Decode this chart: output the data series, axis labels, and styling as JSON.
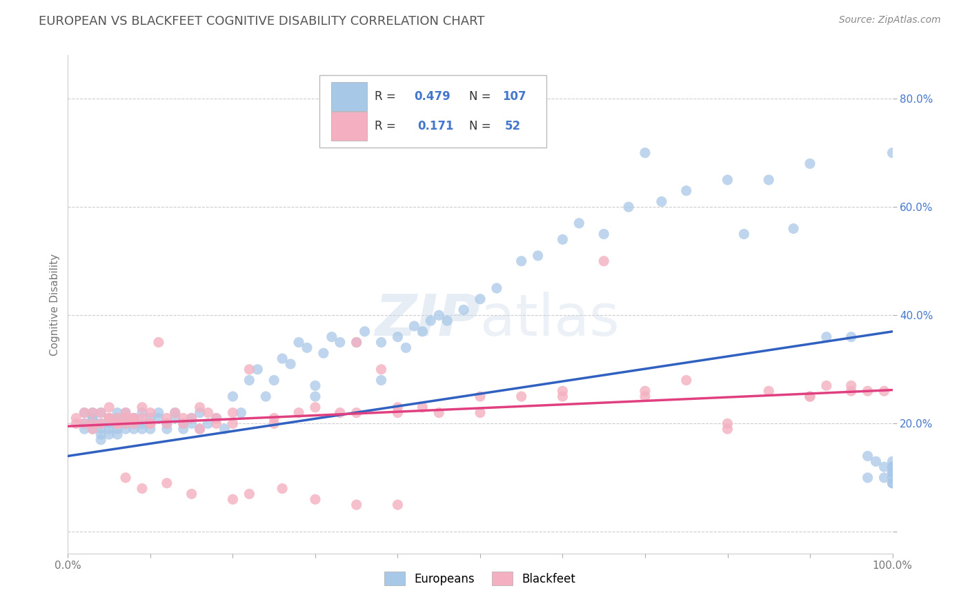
{
  "title": "EUROPEAN VS BLACKFEET COGNITIVE DISABILITY CORRELATION CHART",
  "source": "Source: ZipAtlas.com",
  "ylabel": "Cognitive Disability",
  "xlim": [
    0.0,
    1.0
  ],
  "ylim": [
    -0.04,
    0.88
  ],
  "xticks": [
    0.0,
    0.1,
    0.2,
    0.3,
    0.4,
    0.5,
    0.6,
    0.7,
    0.8,
    0.9,
    1.0
  ],
  "yticks": [
    0.0,
    0.2,
    0.4,
    0.6,
    0.8
  ],
  "yticklabels": [
    "",
    "20.0%",
    "40.0%",
    "60.0%",
    "80.0%"
  ],
  "euro_R": 0.479,
  "euro_N": 107,
  "black_R": 0.171,
  "black_N": 52,
  "euro_color": "#a8c8e8",
  "black_color": "#f4b0c0",
  "euro_line_color": "#3060c0",
  "black_line_color": "#e04080",
  "background_color": "#ffffff",
  "grid_color": "#cccccc",
  "title_color": "#555555",
  "legend_box_euro": "#a8c8e8",
  "legend_box_black": "#f4b0c0",
  "watermark": "ZIPatlas",
  "num_color": "#4477cc",
  "euro_scatter_x": [
    0.02,
    0.02,
    0.02,
    0.03,
    0.03,
    0.03,
    0.03,
    0.04,
    0.04,
    0.04,
    0.04,
    0.04,
    0.05,
    0.05,
    0.05,
    0.05,
    0.06,
    0.06,
    0.06,
    0.06,
    0.07,
    0.07,
    0.07,
    0.07,
    0.08,
    0.08,
    0.08,
    0.09,
    0.09,
    0.09,
    0.1,
    0.1,
    0.1,
    0.11,
    0.11,
    0.12,
    0.12,
    0.13,
    0.13,
    0.14,
    0.14,
    0.15,
    0.15,
    0.16,
    0.16,
    0.17,
    0.18,
    0.19,
    0.2,
    0.21,
    0.22,
    0.23,
    0.24,
    0.25,
    0.26,
    0.27,
    0.28,
    0.29,
    0.3,
    0.3,
    0.31,
    0.32,
    0.33,
    0.35,
    0.36,
    0.38,
    0.38,
    0.4,
    0.41,
    0.42,
    0.43,
    0.44,
    0.45,
    0.46,
    0.48,
    0.5,
    0.52,
    0.55,
    0.57,
    0.6,
    0.62,
    0.65,
    0.68,
    0.7,
    0.72,
    0.75,
    0.8,
    0.82,
    0.85,
    0.88,
    0.9,
    0.92,
    0.95,
    0.97,
    0.97,
    0.98,
    0.99,
    0.99,
    1.0,
    1.0,
    1.0,
    1.0,
    1.0,
    1.0,
    1.0,
    1.0,
    1.0
  ],
  "euro_scatter_y": [
    0.2,
    0.22,
    0.19,
    0.21,
    0.19,
    0.22,
    0.21,
    0.17,
    0.2,
    0.19,
    0.22,
    0.18,
    0.21,
    0.19,
    0.18,
    0.2,
    0.22,
    0.19,
    0.21,
    0.18,
    0.21,
    0.2,
    0.19,
    0.22,
    0.2,
    0.19,
    0.21,
    0.2,
    0.19,
    0.22,
    0.21,
    0.2,
    0.19,
    0.22,
    0.21,
    0.2,
    0.19,
    0.22,
    0.21,
    0.2,
    0.19,
    0.21,
    0.2,
    0.19,
    0.22,
    0.2,
    0.21,
    0.19,
    0.25,
    0.22,
    0.28,
    0.3,
    0.25,
    0.28,
    0.32,
    0.31,
    0.35,
    0.34,
    0.25,
    0.27,
    0.33,
    0.36,
    0.35,
    0.35,
    0.37,
    0.28,
    0.35,
    0.36,
    0.34,
    0.38,
    0.37,
    0.39,
    0.4,
    0.39,
    0.41,
    0.43,
    0.45,
    0.5,
    0.51,
    0.54,
    0.57,
    0.55,
    0.6,
    0.7,
    0.61,
    0.63,
    0.65,
    0.55,
    0.65,
    0.56,
    0.68,
    0.36,
    0.36,
    0.14,
    0.1,
    0.13,
    0.1,
    0.12,
    0.09,
    0.11,
    0.12,
    0.1,
    0.13,
    0.11,
    0.09,
    0.12,
    0.7
  ],
  "black_scatter_x": [
    0.01,
    0.02,
    0.02,
    0.03,
    0.03,
    0.04,
    0.04,
    0.05,
    0.05,
    0.06,
    0.06,
    0.07,
    0.07,
    0.07,
    0.08,
    0.08,
    0.09,
    0.09,
    0.1,
    0.1,
    0.11,
    0.12,
    0.13,
    0.14,
    0.15,
    0.16,
    0.17,
    0.18,
    0.2,
    0.22,
    0.25,
    0.28,
    0.3,
    0.33,
    0.35,
    0.38,
    0.4,
    0.43,
    0.45,
    0.5,
    0.55,
    0.6,
    0.65,
    0.7,
    0.75,
    0.8,
    0.85,
    0.9,
    0.92,
    0.95,
    0.97,
    0.99
  ],
  "black_scatter_y": [
    0.21,
    0.22,
    0.2,
    0.22,
    0.2,
    0.22,
    0.2,
    0.21,
    0.23,
    0.2,
    0.21,
    0.21,
    0.2,
    0.22,
    0.21,
    0.2,
    0.23,
    0.21,
    0.22,
    0.2,
    0.35,
    0.21,
    0.22,
    0.2,
    0.21,
    0.23,
    0.22,
    0.21,
    0.22,
    0.3,
    0.21,
    0.22,
    0.23,
    0.22,
    0.35,
    0.3,
    0.22,
    0.23,
    0.22,
    0.25,
    0.25,
    0.26,
    0.5,
    0.25,
    0.28,
    0.2,
    0.26,
    0.25,
    0.27,
    0.26,
    0.26,
    0.26
  ],
  "extra_black_x": [
    0.01,
    0.03,
    0.05,
    0.06,
    0.08,
    0.1,
    0.12,
    0.14,
    0.16,
    0.18,
    0.2,
    0.25,
    0.35,
    0.4,
    0.5,
    0.6,
    0.7,
    0.8,
    0.9,
    0.95,
    0.07,
    0.09,
    0.12,
    0.15,
    0.2,
    0.22,
    0.26,
    0.3,
    0.35,
    0.4
  ],
  "extra_black_y": [
    0.2,
    0.19,
    0.21,
    0.2,
    0.21,
    0.2,
    0.2,
    0.21,
    0.19,
    0.2,
    0.2,
    0.2,
    0.22,
    0.23,
    0.22,
    0.25,
    0.26,
    0.19,
    0.25,
    0.27,
    0.1,
    0.08,
    0.09,
    0.07,
    0.06,
    0.07,
    0.08,
    0.06,
    0.05,
    0.05
  ]
}
